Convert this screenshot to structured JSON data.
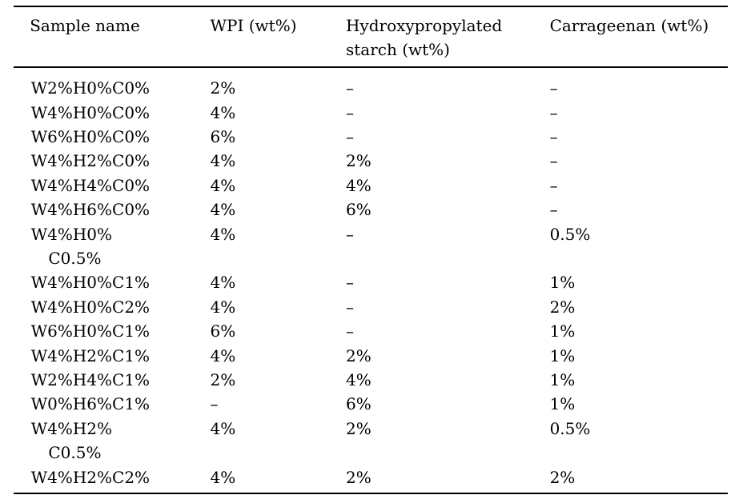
{
  "page": {
    "background_color": "#ffffff",
    "text_color": "#000000",
    "rule_color": "#000000"
  },
  "chart_data": {
    "type": "table",
    "columns": [
      "Sample name",
      "WPI (wt%)",
      "Hydroxypropylated starch (wt%)",
      "Carrageenan (wt%)"
    ],
    "rows": [
      [
        "W2%H0%C0%",
        "2%",
        "–",
        "–"
      ],
      [
        "W4%H0%C0%",
        "4%",
        "–",
        "–"
      ],
      [
        "W6%H0%C0%",
        "6%",
        "–",
        "–"
      ],
      [
        "W4%H2%C0%",
        "4%",
        "2%",
        "–"
      ],
      [
        "W4%H4%C0%",
        "4%",
        "4%",
        "–"
      ],
      [
        "W4%H6%C0%",
        "4%",
        "6%",
        "–"
      ],
      [
        "W4%H0%\nC0.5%",
        "4%",
        "–",
        "0.5%"
      ],
      [
        "W4%H0%C1%",
        "4%",
        "–",
        "1%"
      ],
      [
        "W4%H0%C2%",
        "4%",
        "–",
        "2%"
      ],
      [
        "W6%H0%C1%",
        "6%",
        "–",
        "1%"
      ],
      [
        "W4%H2%C1%",
        "4%",
        "2%",
        "1%"
      ],
      [
        "W2%H4%C1%",
        "2%",
        "4%",
        "1%"
      ],
      [
        "W0%H6%C1%",
        "–",
        "6%",
        "1%"
      ],
      [
        "W4%H2%\nC0.5%",
        "4%",
        "2%",
        "0.5%"
      ],
      [
        "W4%H2%C2%",
        "4%",
        "2%",
        "2%"
      ]
    ]
  }
}
